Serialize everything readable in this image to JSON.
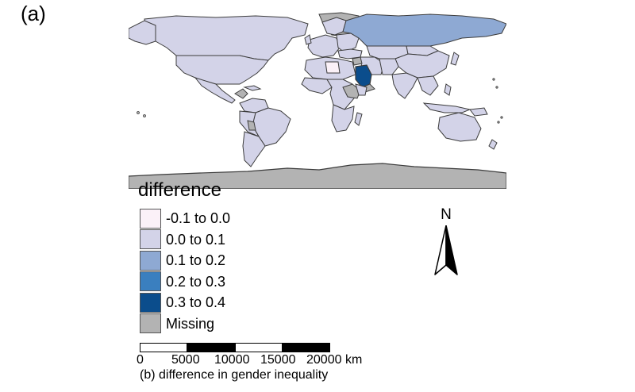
{
  "panel_label": "(a)",
  "caption": "(b) difference in gender inequality",
  "map": {
    "colors": {
      "very_light": "#fbf1f8",
      "light": "#d3d3e8",
      "mid": "#8ea9d3",
      "strong": "#3a7fbf",
      "darkest": "#0b4d8c",
      "missing": "#b3b3b3",
      "border": "#3c3c3c"
    }
  },
  "legend": {
    "title": "difference",
    "items": [
      {
        "label": "-0.1 to 0.0",
        "color": "#fbf1f8"
      },
      {
        "label": "0.0 to 0.1",
        "color": "#d3d3e8"
      },
      {
        "label": "0.1 to 0.2",
        "color": "#8ea9d3"
      },
      {
        "label": "0.2 to 0.3",
        "color": "#3a7fbf"
      },
      {
        "label": "0.3 to 0.4",
        "color": "#0b4d8c"
      },
      {
        "label": "Missing",
        "color": "#b3b3b3"
      }
    ]
  },
  "north_arrow": {
    "letter": "N"
  },
  "scale_bar": {
    "ticks": [
      "0",
      "5000",
      "10000",
      "15000",
      "20000 km"
    ]
  }
}
